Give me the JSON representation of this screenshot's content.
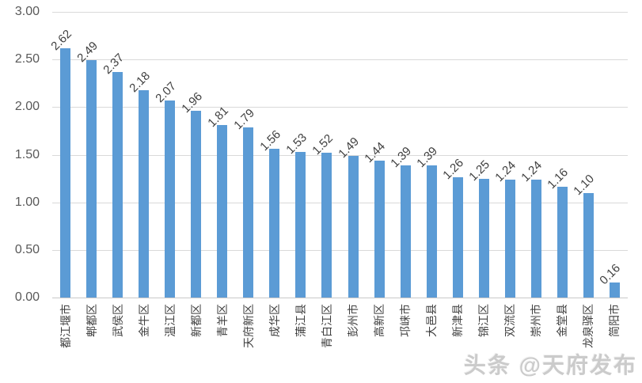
{
  "chart_data": {
    "type": "bar",
    "categories": [
      "都江堰市",
      "郫都区",
      "武侯区",
      "金牛区",
      "温江区",
      "新都区",
      "青羊区",
      "天府新区",
      "成华区",
      "蒲江县",
      "青白江区",
      "彭州市",
      "高新区",
      "邛崃市",
      "大邑县",
      "新津县",
      "锦江区",
      "双流区",
      "崇州市",
      "金堂县",
      "龙泉驿区",
      "简阳市"
    ],
    "values": [
      2.62,
      2.49,
      2.37,
      2.18,
      2.07,
      1.96,
      1.81,
      1.79,
      1.56,
      1.53,
      1.52,
      1.49,
      1.44,
      1.39,
      1.39,
      1.26,
      1.25,
      1.24,
      1.24,
      1.16,
      1.1,
      0.16
    ],
    "value_labels": [
      "2.62",
      "2.49",
      "2.37",
      "2.18",
      "2.07",
      "1.96",
      "1.81",
      "1.79",
      "1.56",
      "1.53",
      "1.52",
      "1.49",
      "1.44",
      "1.39",
      "1.39",
      "1.26",
      "1.25",
      "1.24",
      "1.24",
      "1.16",
      "1.10",
      "0.16"
    ],
    "y_tick_labels": [
      "3.00",
      "2.50",
      "2.00",
      "1.50",
      "1.00",
      "0.50",
      "0.00"
    ],
    "ylim": [
      0,
      3
    ],
    "grid": true,
    "legend": "none",
    "title": "",
    "xlabel": "",
    "ylabel": "",
    "colors": {
      "bar": "#5B9BD5",
      "gridline": "#D9D9D9",
      "axis_line": "#C9C9C9",
      "tick_text": "#595959",
      "label_text": "#404040"
    }
  },
  "watermark": {
    "text": "头条 @天府发布",
    "color": "#CBCBCB"
  }
}
